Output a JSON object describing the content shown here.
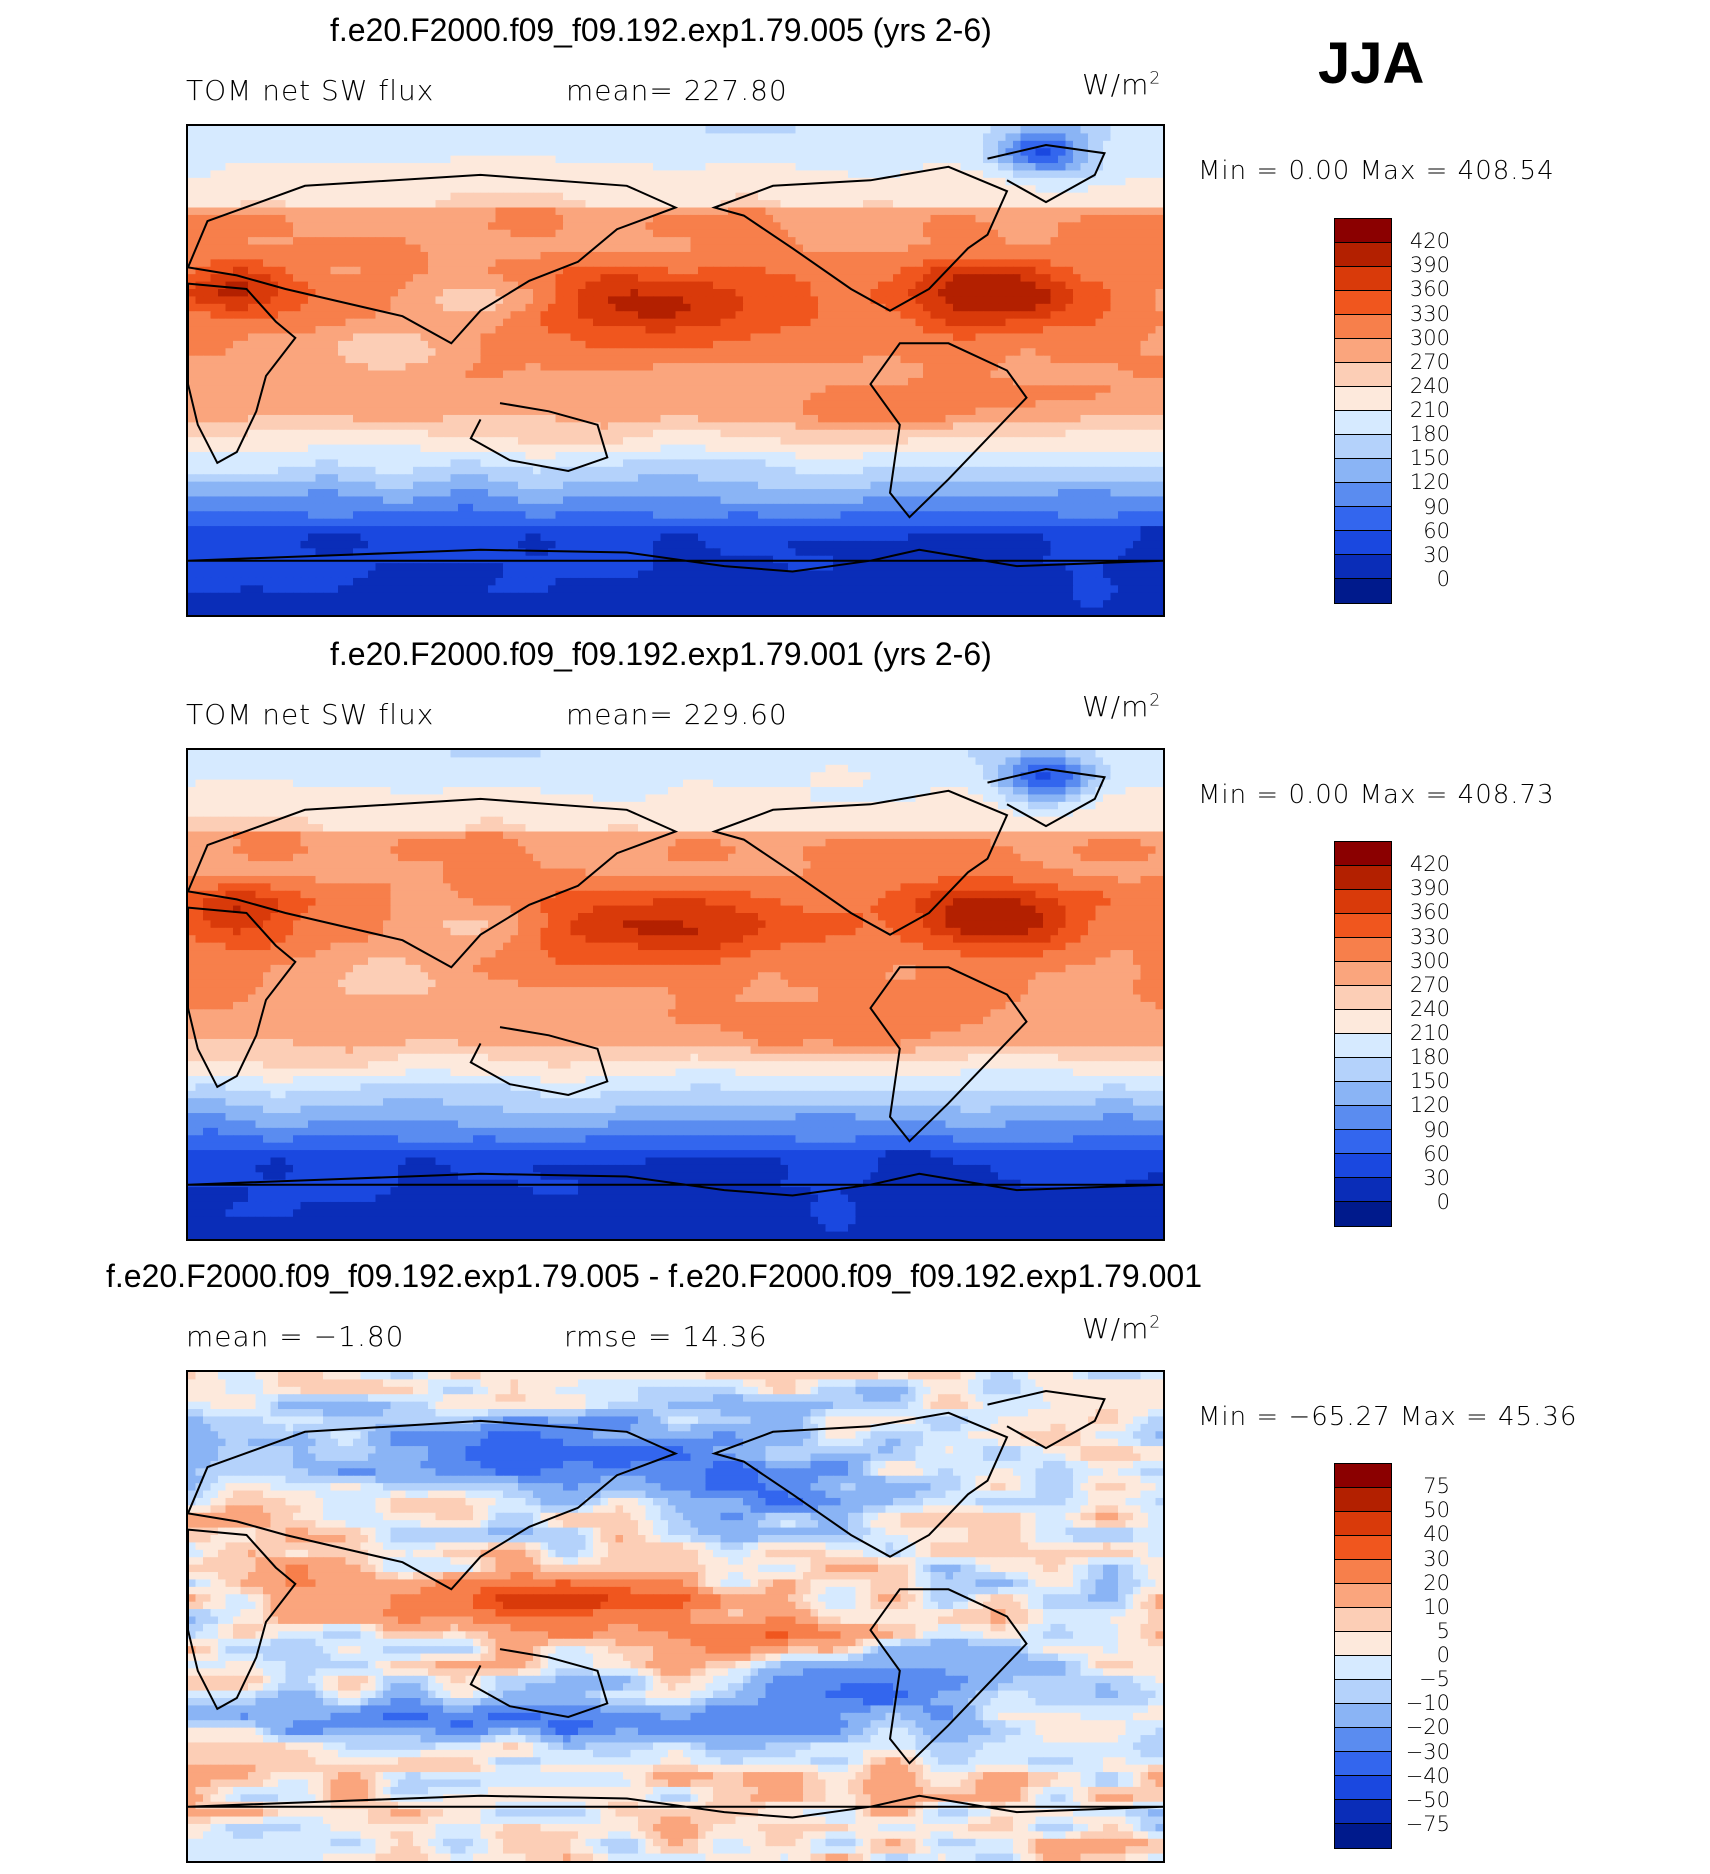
{
  "season": "JJA",
  "units": "W/m",
  "units_sup": "2",
  "panels": [
    {
      "title": "f.e20.F2000.f09_f09.192.exp1.79.005 (yrs 2-6)",
      "variable": "TOM net SW flux",
      "stat": "mean= 227.80",
      "minmax": "Min =     0.00  Max  =  408.54"
    },
    {
      "title": "f.e20.F2000.f09_f09.192.exp1.79.001 (yrs 2-6)",
      "variable": "TOM net SW flux",
      "stat": "mean= 229.60",
      "minmax": "Min =     0.00  Max  =  408.73"
    },
    {
      "title": "f.e20.F2000.f09_f09.192.exp1.79.005 - f.e20.F2000.f09_f09.192.exp1.79.001",
      "variable": "mean =   −1.80",
      "stat": "rmse =    14.36",
      "minmax": "Min = −65.27  Max =    45.36"
    }
  ],
  "chart_data": [
    {
      "type": "heatmap",
      "title": "f.e20.F2000.f09_f09.192.exp1.79.005 (yrs 2-6)",
      "subtitle": "TOM net SW flux",
      "units": "W/m2",
      "mean": 227.8,
      "min": 0.0,
      "max": 408.54,
      "levels": [
        0,
        30,
        60,
        90,
        120,
        150,
        180,
        210,
        240,
        270,
        300,
        330,
        360,
        390,
        420
      ],
      "colorbar_labels": [
        "420",
        "390",
        "360",
        "330",
        "300",
        "270",
        "240",
        "210",
        "180",
        "150",
        "120",
        "90",
        "60",
        "30",
        "0"
      ],
      "colors": [
        "#8b0000",
        "#b32000",
        "#d93a0a",
        "#f0561e",
        "#f77f4b",
        "#faa57d",
        "#fcceb6",
        "#fde9dc",
        "#d6eaff",
        "#b4d2fb",
        "#8ab4f5",
        "#5a8cf0",
        "#3366ee",
        "#1a48e0",
        "#0a2db8",
        "#001a8c"
      ]
    },
    {
      "type": "heatmap",
      "title": "f.e20.F2000.f09_f09.192.exp1.79.001 (yrs 2-6)",
      "subtitle": "TOM net SW flux",
      "units": "W/m2",
      "mean": 229.6,
      "min": 0.0,
      "max": 408.73,
      "levels": [
        0,
        30,
        60,
        90,
        120,
        150,
        180,
        210,
        240,
        270,
        300,
        330,
        360,
        390,
        420
      ],
      "colorbar_labels": [
        "420",
        "390",
        "360",
        "330",
        "300",
        "270",
        "240",
        "210",
        "180",
        "150",
        "120",
        "90",
        "60",
        "30",
        "0"
      ],
      "colors": [
        "#8b0000",
        "#b32000",
        "#d93a0a",
        "#f0561e",
        "#f77f4b",
        "#faa57d",
        "#fcceb6",
        "#fde9dc",
        "#d6eaff",
        "#b4d2fb",
        "#8ab4f5",
        "#5a8cf0",
        "#3366ee",
        "#1a48e0",
        "#0a2db8",
        "#001a8c"
      ]
    },
    {
      "type": "heatmap",
      "title": "f.e20.F2000.f09_f09.192.exp1.79.005 - f.e20.F2000.f09_f09.192.exp1.79.001",
      "units": "W/m2",
      "mean": -1.8,
      "rmse": 14.36,
      "min": -65.27,
      "max": 45.36,
      "levels": [
        -75,
        -50,
        -40,
        -30,
        -20,
        -10,
        -5,
        0,
        5,
        10,
        20,
        30,
        40,
        50,
        75
      ],
      "colorbar_labels": [
        "75",
        "50",
        "40",
        "30",
        "20",
        "10",
        "5",
        "0",
        "−5",
        "−10",
        "−20",
        "−30",
        "−40",
        "−50",
        "−75"
      ],
      "colors": [
        "#8b0000",
        "#b32000",
        "#d93a0a",
        "#f0561e",
        "#f77f4b",
        "#faa57d",
        "#fcceb6",
        "#fde9dc",
        "#d6eaff",
        "#b4d2fb",
        "#8ab4f5",
        "#5a8cf0",
        "#3366ee",
        "#1a48e0",
        "#0a2db8",
        "#001a8c"
      ]
    }
  ]
}
